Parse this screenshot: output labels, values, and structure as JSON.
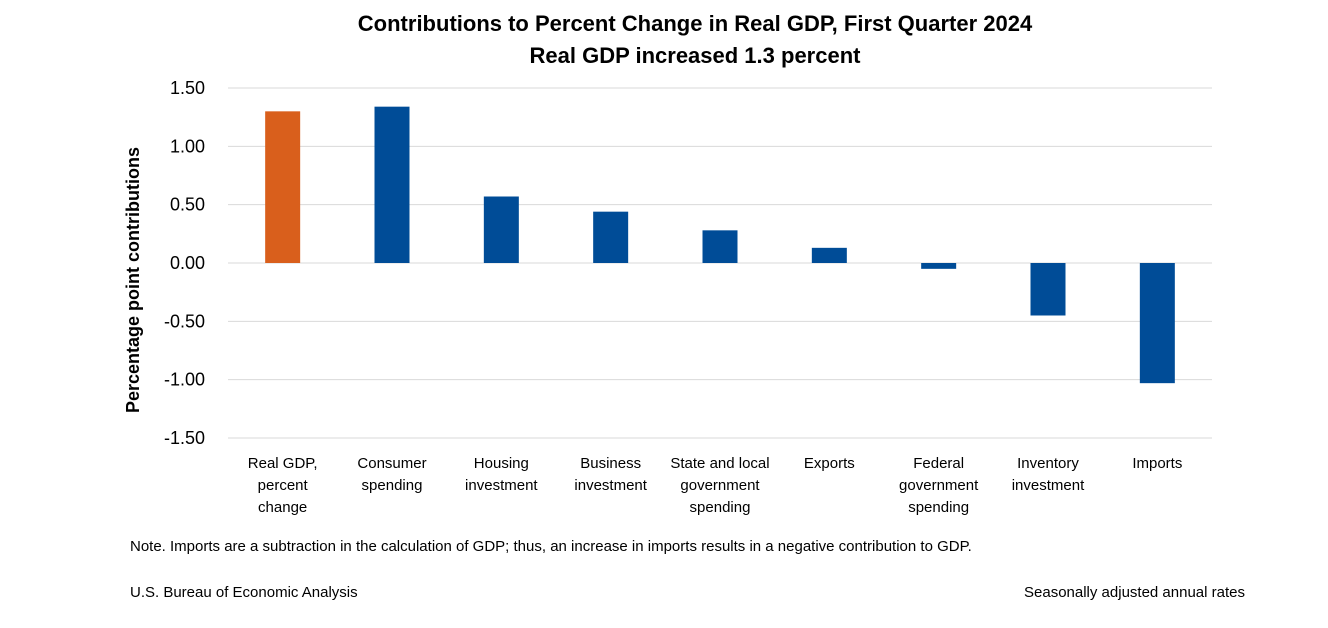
{
  "chart_data": {
    "type": "bar",
    "title": "Contributions to Percent Change in Real GDP, First Quarter 2024",
    "subtitle": "Real GDP increased 1.3 percent",
    "ylabel": "Percentage point contributions",
    "xlabel": "",
    "ylim": [
      -1.5,
      1.5
    ],
    "yticks": [
      "1.50",
      "1.00",
      "0.50",
      "0.00",
      "-0.50",
      "-1.00",
      "-1.50"
    ],
    "grid": true,
    "categories": [
      [
        "Real GDP,",
        "percent",
        "change"
      ],
      [
        "Consumer",
        "spending"
      ],
      [
        "Housing",
        "investment"
      ],
      [
        "Business",
        "investment"
      ],
      [
        "State and local",
        "government",
        "spending"
      ],
      [
        "Exports"
      ],
      [
        "Federal",
        "government",
        "spending"
      ],
      [
        "Inventory",
        "investment"
      ],
      [
        "Imports"
      ]
    ],
    "values": [
      1.3,
      1.34,
      0.57,
      0.44,
      0.28,
      0.13,
      -0.05,
      -0.45,
      -1.03
    ],
    "colors": {
      "total": "#D95F1C",
      "component": "#004C97",
      "grid": "#D9D9D9"
    }
  },
  "footer": {
    "note": "Note. Imports are a subtraction in the calculation of GDP; thus, an increase in imports results in a negative contribution to GDP.",
    "source": "U.S. Bureau of Economic Analysis",
    "rates": "Seasonally adjusted annual rates"
  }
}
